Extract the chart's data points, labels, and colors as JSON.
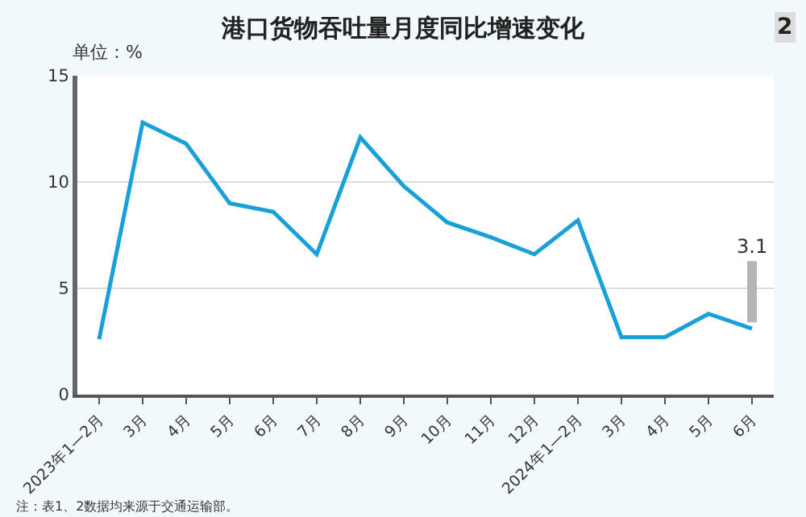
{
  "chart_data": {
    "type": "line",
    "title": "港口货物吞吐量月度同比增速变化",
    "ylabel": "单位：%",
    "annotations": [
      "2",
      "注：表1、2数据均来源于交通运输部。"
    ],
    "categories": [
      "2023年1—2月",
      "3月",
      "4月",
      "5月",
      "6月",
      "7月",
      "8月",
      "9月",
      "10月",
      "11月",
      "12月",
      "2024年1—2月",
      "3月",
      "4月",
      "5月",
      "6月"
    ],
    "series": [
      {
        "color": "#1aa0d8",
        "values": [
          2.6,
          12.8,
          11.8,
          9.0,
          8.6,
          6.6,
          12.1,
          9.8,
          8.1,
          7.4,
          6.6,
          8.2,
          2.7,
          2.7,
          3.8,
          3.1
        ],
        "value_labels": [
          null,
          null,
          null,
          null,
          null,
          null,
          null,
          null,
          null,
          null,
          null,
          null,
          null,
          null,
          null,
          "3.1"
        ]
      }
    ],
    "ylim": [
      0,
      15
    ],
    "yticks": [
      0,
      5,
      10,
      15
    ],
    "grid": "y",
    "legend": false,
    "marker": "none",
    "line_style": "solid"
  }
}
